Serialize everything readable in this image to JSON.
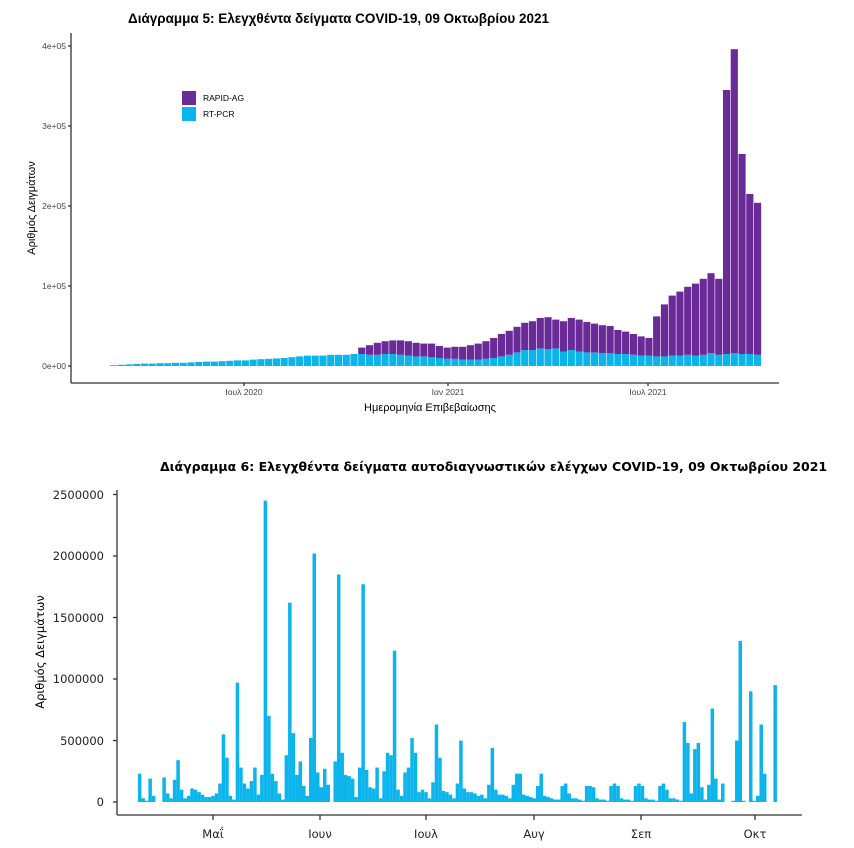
{
  "chart_data": [
    {
      "type": "bar",
      "stacked": true,
      "title": "Διάγραμμα 5: Ελεγχθέντα δείγματα COVID-19, 09 Οκτωβρίου 2021",
      "xlabel": "Ημερομηνία Επιβεβαίωσης",
      "ylabel": "Αριθμός Δειγμάτων",
      "ylim": [
        0,
        400000
      ],
      "y_ticks": [
        "0e+00",
        "1e+05",
        "2e+05",
        "3e+05",
        "4e+05"
      ],
      "x_ticks": [
        "Ιουλ 2020",
        "Ιαν 2021",
        "Ιουλ 2021"
      ],
      "grid": false,
      "legend_position": "top-left",
      "colors": {
        "RAPID-AG": "#6a2a97",
        "RT-PCR": "#0bb4ea"
      },
      "x": [
        "2020-03-02",
        "2020-03-09",
        "2020-03-16",
        "2020-03-23",
        "2020-03-30",
        "2020-04-06",
        "2020-04-13",
        "2020-04-20",
        "2020-04-27",
        "2020-05-04",
        "2020-05-11",
        "2020-05-18",
        "2020-05-25",
        "2020-06-01",
        "2020-06-08",
        "2020-06-15",
        "2020-06-22",
        "2020-06-29",
        "2020-07-06",
        "2020-07-13",
        "2020-07-20",
        "2020-07-27",
        "2020-08-03",
        "2020-08-10",
        "2020-08-17",
        "2020-08-24",
        "2020-08-31",
        "2020-09-07",
        "2020-09-14",
        "2020-09-21",
        "2020-09-28",
        "2020-10-05",
        "2020-10-12",
        "2020-10-19",
        "2020-10-26",
        "2020-11-02",
        "2020-11-09",
        "2020-11-16",
        "2020-11-23",
        "2020-11-30",
        "2020-12-07",
        "2020-12-14",
        "2020-12-21",
        "2020-12-28",
        "2021-01-04",
        "2021-01-11",
        "2021-01-18",
        "2021-01-25",
        "2021-02-01",
        "2021-02-08",
        "2021-02-15",
        "2021-02-22",
        "2021-03-01",
        "2021-03-08",
        "2021-03-15",
        "2021-03-22",
        "2021-03-29",
        "2021-04-05",
        "2021-04-12",
        "2021-04-19",
        "2021-04-26",
        "2021-05-03",
        "2021-05-10",
        "2021-05-17",
        "2021-05-24",
        "2021-05-31",
        "2021-06-07",
        "2021-06-14",
        "2021-06-21",
        "2021-06-28",
        "2021-07-05",
        "2021-07-12",
        "2021-07-19",
        "2021-07-26",
        "2021-08-02",
        "2021-08-09",
        "2021-08-16",
        "2021-08-23",
        "2021-08-30",
        "2021-09-06",
        "2021-09-13",
        "2021-09-20",
        "2021-09-27",
        "2021-10-04"
      ],
      "series": [
        {
          "name": "RT-PCR",
          "values": [
            1000,
            1500,
            2000,
            2500,
            3000,
            3000,
            3500,
            3500,
            4000,
            4000,
            4500,
            5000,
            5500,
            5500,
            6000,
            6500,
            7000,
            7000,
            8000,
            8500,
            9000,
            9500,
            10000,
            11000,
            12000,
            13000,
            13000,
            13000,
            14000,
            14000,
            14000,
            15000,
            15000,
            14000,
            14000,
            15000,
            15000,
            14000,
            13000,
            12000,
            12000,
            11000,
            10000,
            9000,
            9000,
            8000,
            8000,
            8000,
            9000,
            10000,
            12000,
            14000,
            17000,
            20000,
            20000,
            22000,
            21000,
            22000,
            18000,
            20000,
            18000,
            17000,
            17000,
            16000,
            16000,
            15000,
            15000,
            14000,
            13000,
            13000,
            12000,
            12000,
            13000,
            13000,
            14000,
            13000,
            14000,
            16000,
            14000,
            15000,
            16000,
            15000,
            15000,
            14000
          ]
        },
        {
          "name": "RAPID-AG",
          "values": [
            0,
            0,
            0,
            0,
            0,
            0,
            0,
            0,
            0,
            0,
            0,
            0,
            0,
            0,
            0,
            0,
            0,
            0,
            0,
            0,
            0,
            0,
            0,
            0,
            0,
            0,
            0,
            0,
            0,
            0,
            0,
            0,
            8000,
            12000,
            15000,
            16000,
            17000,
            18000,
            18000,
            17000,
            16000,
            17000,
            15000,
            14000,
            15000,
            16000,
            18000,
            20000,
            22000,
            25000,
            28000,
            30000,
            32000,
            34000,
            36000,
            38000,
            40000,
            36000,
            38000,
            40000,
            40000,
            38000,
            36000,
            35000,
            34000,
            30000,
            28000,
            26000,
            24000,
            22000,
            50000,
            65000,
            75000,
            80000,
            85000,
            90000,
            95000,
            100000,
            95000,
            330000,
            380000,
            250000,
            200000,
            190000
          ]
        }
      ]
    },
    {
      "type": "bar",
      "title": "Διάγραμμα 6: Ελεγχθέντα δείγματα αυτοδιαγνωστικών ελέγχων COVID-19, 09 Οκτωβρίου 2021",
      "xlabel": "",
      "ylabel": "Αριθμός Δειγμάτων",
      "ylim": [
        0,
        2500000
      ],
      "y_ticks": [
        "0",
        "500000",
        "1000000",
        "1500000",
        "2000000",
        "2500000"
      ],
      "x_ticks": [
        "Μαΐ",
        "Ιουν",
        "Ιουλ",
        "Αυγ",
        "Σεπ",
        "Οκτ"
      ],
      "grid": false,
      "color": "#0bb4ea",
      "x": [
        "2021-04-10",
        "2021-04-11",
        "2021-04-12",
        "2021-04-13",
        "2021-04-14",
        "2021-04-15",
        "2021-04-16",
        "2021-04-17",
        "2021-04-18",
        "2021-04-19",
        "2021-04-20",
        "2021-04-21",
        "2021-04-22",
        "2021-04-23",
        "2021-04-24",
        "2021-04-25",
        "2021-04-26",
        "2021-04-27",
        "2021-04-28",
        "2021-04-29",
        "2021-04-30",
        "2021-05-01",
        "2021-05-02",
        "2021-05-03",
        "2021-05-04",
        "2021-05-05",
        "2021-05-06",
        "2021-05-07",
        "2021-05-08",
        "2021-05-09",
        "2021-05-10",
        "2021-05-11",
        "2021-05-12",
        "2021-05-13",
        "2021-05-14",
        "2021-05-15",
        "2021-05-16",
        "2021-05-17",
        "2021-05-18",
        "2021-05-19",
        "2021-05-20",
        "2021-05-21",
        "2021-05-22",
        "2021-05-23",
        "2021-05-24",
        "2021-05-25",
        "2021-05-26",
        "2021-05-27",
        "2021-05-28",
        "2021-05-29",
        "2021-05-30",
        "2021-05-31",
        "2021-06-01",
        "2021-06-02",
        "2021-06-03",
        "2021-06-04",
        "2021-06-05",
        "2021-06-06",
        "2021-06-07",
        "2021-06-08",
        "2021-06-09",
        "2021-06-10",
        "2021-06-11",
        "2021-06-12",
        "2021-06-13",
        "2021-06-14",
        "2021-06-15",
        "2021-06-16",
        "2021-06-17",
        "2021-06-18",
        "2021-06-19",
        "2021-06-20",
        "2021-06-21",
        "2021-06-22",
        "2021-06-23",
        "2021-06-24",
        "2021-06-25",
        "2021-06-26",
        "2021-06-27",
        "2021-06-28",
        "2021-06-29",
        "2021-06-30",
        "2021-07-01",
        "2021-07-02",
        "2021-07-03",
        "2021-07-04",
        "2021-07-05",
        "2021-07-06",
        "2021-07-07",
        "2021-07-08",
        "2021-07-09",
        "2021-07-10",
        "2021-07-11",
        "2021-07-12",
        "2021-07-13",
        "2021-07-14",
        "2021-07-15",
        "2021-07-16",
        "2021-07-17",
        "2021-07-18",
        "2021-07-19",
        "2021-07-20",
        "2021-07-21",
        "2021-07-22",
        "2021-07-23",
        "2021-07-24",
        "2021-07-25",
        "2021-07-26",
        "2021-07-27",
        "2021-07-28",
        "2021-07-29",
        "2021-07-30",
        "2021-07-31",
        "2021-08-01",
        "2021-08-02",
        "2021-08-03",
        "2021-08-04",
        "2021-08-05",
        "2021-08-06",
        "2021-08-07",
        "2021-08-08",
        "2021-08-09",
        "2021-08-10",
        "2021-08-11",
        "2021-08-12",
        "2021-08-13",
        "2021-08-14",
        "2021-08-15",
        "2021-08-16",
        "2021-08-17",
        "2021-08-18",
        "2021-08-19",
        "2021-08-20",
        "2021-08-21",
        "2021-08-22",
        "2021-08-23",
        "2021-08-24",
        "2021-08-25",
        "2021-08-26",
        "2021-08-27",
        "2021-08-28",
        "2021-08-29",
        "2021-08-30",
        "2021-08-31",
        "2021-09-01",
        "2021-09-02",
        "2021-09-03",
        "2021-09-04",
        "2021-09-05",
        "2021-09-06",
        "2021-09-07",
        "2021-09-08",
        "2021-09-09",
        "2021-09-10",
        "2021-09-11",
        "2021-09-12",
        "2021-09-13",
        "2021-09-14",
        "2021-09-15",
        "2021-09-16",
        "2021-09-17",
        "2021-09-18",
        "2021-09-19",
        "2021-09-20",
        "2021-09-21",
        "2021-09-22",
        "2021-09-23",
        "2021-09-24",
        "2021-09-25",
        "2021-09-26",
        "2021-09-27",
        "2021-09-28",
        "2021-09-29",
        "2021-09-30",
        "2021-10-01",
        "2021-10-02",
        "2021-10-03",
        "2021-10-04",
        "2021-10-05",
        "2021-10-06",
        "2021-10-07",
        "2021-10-08",
        "2021-10-09"
      ],
      "values": [
        230000,
        30000,
        10000,
        190000,
        50000,
        0,
        0,
        200000,
        70000,
        30000,
        180000,
        340000,
        100000,
        30000,
        50000,
        110000,
        100000,
        80000,
        60000,
        40000,
        40000,
        50000,
        70000,
        150000,
        550000,
        360000,
        50000,
        20000,
        970000,
        280000,
        150000,
        110000,
        170000,
        280000,
        60000,
        220000,
        2450000,
        700000,
        230000,
        170000,
        70000,
        20000,
        380000,
        1620000,
        560000,
        220000,
        330000,
        130000,
        50000,
        520000,
        2020000,
        240000,
        120000,
        270000,
        140000,
        0,
        330000,
        1850000,
        400000,
        220000,
        210000,
        190000,
        40000,
        280000,
        1770000,
        260000,
        120000,
        110000,
        280000,
        30000,
        250000,
        400000,
        380000,
        1230000,
        100000,
        50000,
        240000,
        280000,
        520000,
        400000,
        80000,
        100000,
        80000,
        30000,
        160000,
        630000,
        360000,
        90000,
        80000,
        60000,
        30000,
        150000,
        500000,
        110000,
        80000,
        80000,
        70000,
        50000,
        60000,
        30000,
        140000,
        440000,
        100000,
        60000,
        60000,
        50000,
        30000,
        140000,
        230000,
        230000,
        60000,
        50000,
        40000,
        30000,
        130000,
        230000,
        50000,
        40000,
        30000,
        20000,
        20000,
        130000,
        150000,
        70000,
        30000,
        30000,
        20000,
        10000,
        130000,
        130000,
        120000,
        30000,
        20000,
        20000,
        10000,
        130000,
        150000,
        130000,
        30000,
        20000,
        20000,
        10000,
        130000,
        150000,
        130000,
        30000,
        20000,
        20000,
        10000,
        130000,
        150000,
        100000,
        30000,
        30000,
        20000,
        10000,
        650000,
        480000,
        70000,
        430000,
        480000,
        120000,
        20000,
        140000,
        760000,
        190000,
        20000,
        150000,
        0,
        0,
        10000,
        500000,
        1310000,
        10000,
        0,
        900000,
        10000,
        50000,
        630000,
        230000,
        0,
        0,
        950000
      ]
    }
  ]
}
